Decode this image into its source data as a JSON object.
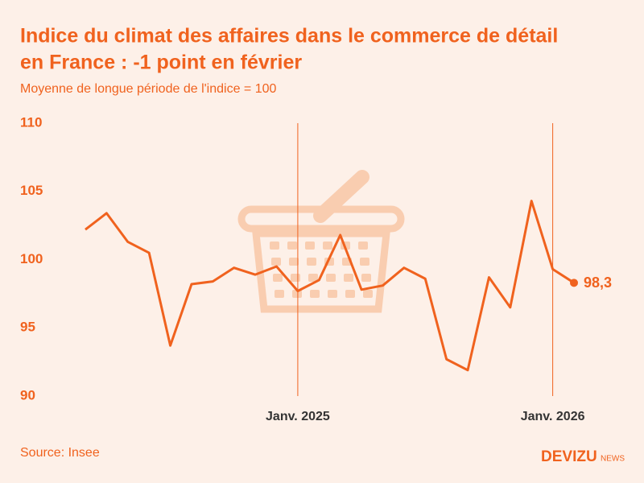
{
  "chart_data": {
    "type": "line",
    "title": [
      "Indice du climat des affaires dans le commerce de détail",
      "en France : -1 point en février"
    ],
    "subtitle": "Moyenne de longue période de l'indice = 100",
    "source": "Source: Insee",
    "brand": {
      "name": "DEVIZU",
      "suffix": "NEWS"
    },
    "categories": [
      null,
      null,
      null,
      null,
      null,
      null,
      null,
      null,
      null,
      null,
      "Janv. 2025",
      null,
      null,
      null,
      null,
      null,
      null,
      null,
      null,
      null,
      null,
      null,
      "Janv. 2026",
      null
    ],
    "values": [
      102.2,
      103.4,
      101.3,
      100.5,
      93.7,
      98.2,
      98.4,
      99.4,
      98.9,
      99.5,
      97.7,
      98.5,
      101.8,
      97.8,
      98.1,
      99.4,
      98.6,
      92.7,
      91.9,
      98.7,
      96.5,
      104.3,
      99.3,
      98.3
    ],
    "value_labels": [
      null,
      null,
      null,
      null,
      null,
      null,
      null,
      null,
      null,
      null,
      null,
      null,
      null,
      null,
      null,
      null,
      null,
      null,
      null,
      null,
      null,
      null,
      null,
      "98,3"
    ],
    "color": "#f0621e",
    "ylim": [
      90,
      110
    ],
    "yticks": [
      90,
      95,
      100,
      105,
      110
    ]
  }
}
